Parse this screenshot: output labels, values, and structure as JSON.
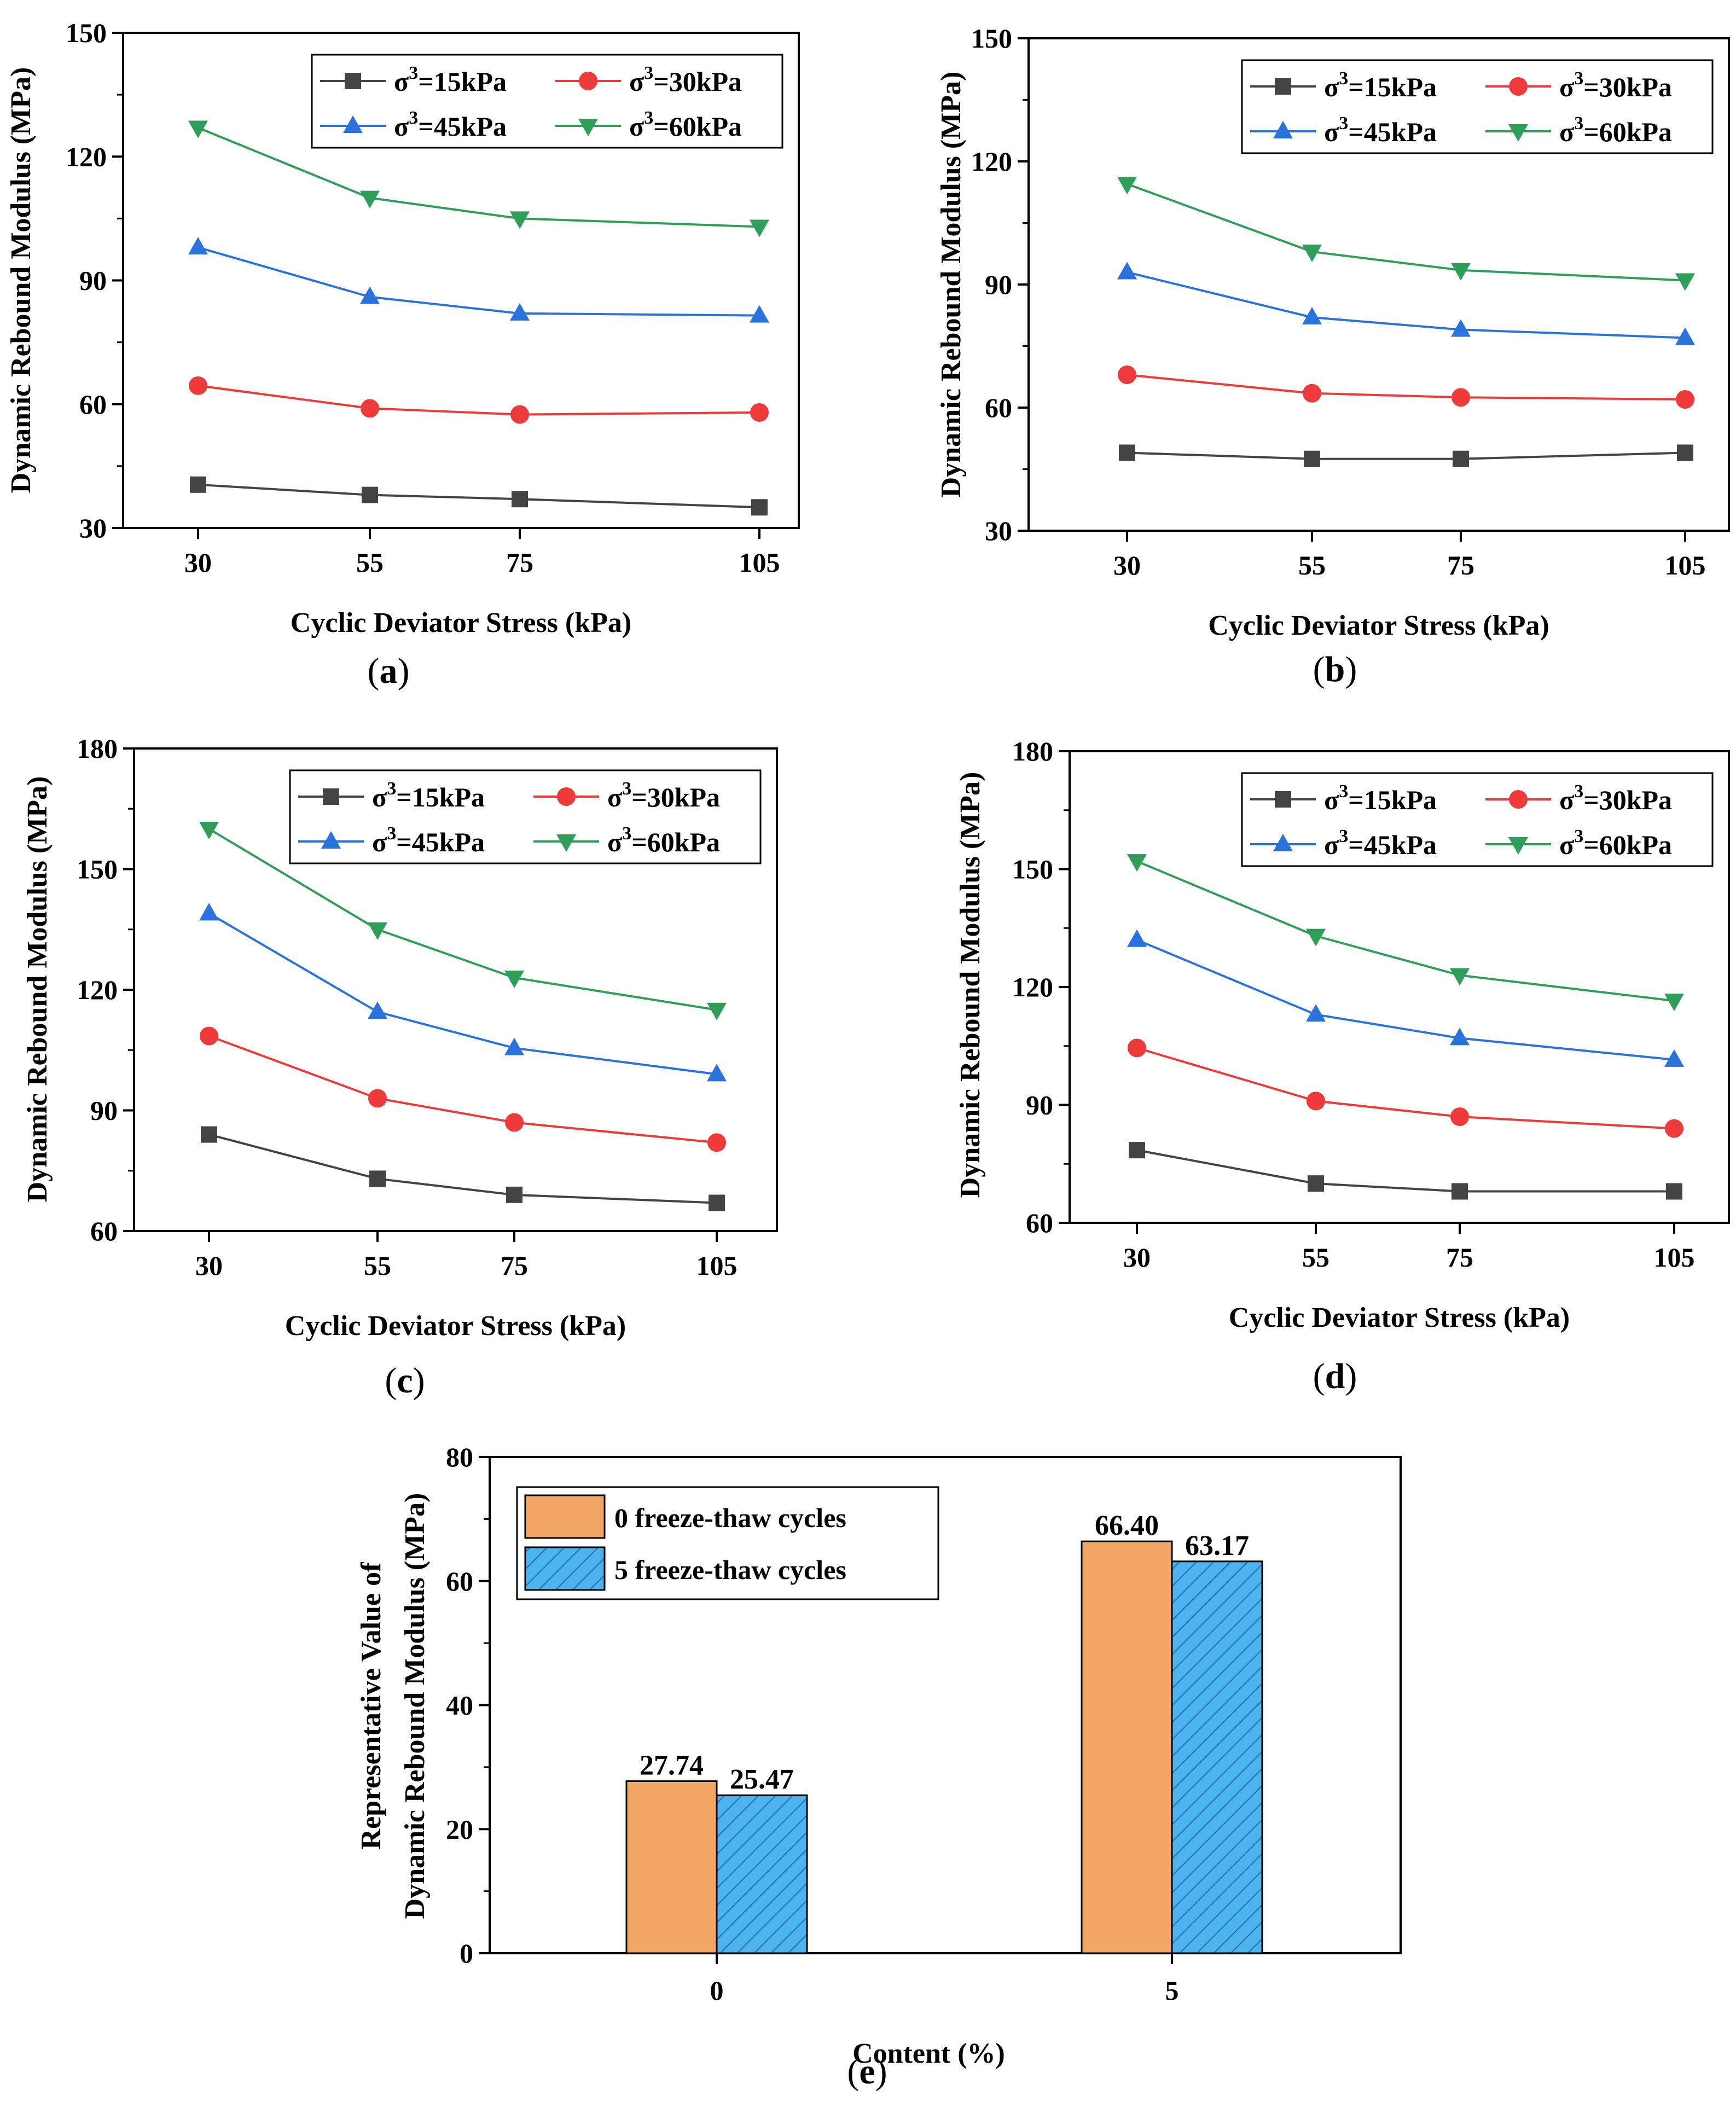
{
  "colors": {
    "s15": "#444444",
    "s30": "#ee3a3a",
    "s45": "#2a73dd",
    "s60": "#2e9e58",
    "bar0": "#f2a766",
    "bar5": "#4db3ec",
    "bar5_hatch": "#1f6fb3"
  },
  "chart_data": [
    {
      "id": "a",
      "type": "line",
      "caption_open": "(",
      "caption_letter": "a",
      "caption_close": ")",
      "xlabel": "Cyclic Deviator Stress (kPa)",
      "ylabel": "Dynamic Rebound Modulus (MPa)",
      "categories": [
        "30",
        "55",
        "75",
        "105"
      ],
      "ylim": [
        30,
        150
      ],
      "yticks": [
        30,
        60,
        90,
        120,
        150
      ],
      "legend_position": "top-right",
      "series": [
        {
          "name_prefix": "σ",
          "name_sup": "3",
          "name_suffix": "=15kPa",
          "color_key": "s15",
          "marker": "square",
          "values": [
            40.5,
            38,
            37,
            35
          ]
        },
        {
          "name_prefix": "σ",
          "name_sup": "3",
          "name_suffix": "=30kPa",
          "color_key": "s30",
          "marker": "circle",
          "values": [
            64.5,
            59,
            57.5,
            58
          ]
        },
        {
          "name_prefix": "σ",
          "name_sup": "3",
          "name_suffix": "=45kPa",
          "color_key": "s45",
          "marker": "triangle-up",
          "values": [
            98,
            86,
            82,
            81.5
          ]
        },
        {
          "name_prefix": "σ",
          "name_sup": "3",
          "name_suffix": "=60kPa",
          "color_key": "s60",
          "marker": "triangle-down",
          "values": [
            127,
            110,
            105,
            103
          ]
        }
      ]
    },
    {
      "id": "b",
      "type": "line",
      "caption_open": "(",
      "caption_letter": "b",
      "caption_close": ")",
      "xlabel": "Cyclic Deviator Stress (kPa)",
      "ylabel": "Dynamic Rebound Modulus (MPa)",
      "categories": [
        "30",
        "55",
        "75",
        "105"
      ],
      "ylim": [
        30,
        150
      ],
      "yticks": [
        30,
        60,
        90,
        120,
        150
      ],
      "legend_position": "top-right",
      "series": [
        {
          "name_prefix": "σ",
          "name_sup": "3",
          "name_suffix": "=15kPa",
          "color_key": "s15",
          "marker": "square",
          "values": [
            49,
            47.5,
            47.5,
            49
          ]
        },
        {
          "name_prefix": "σ",
          "name_sup": "3",
          "name_suffix": "=30kPa",
          "color_key": "s30",
          "marker": "circle",
          "values": [
            68,
            63.5,
            62.5,
            62
          ]
        },
        {
          "name_prefix": "σ",
          "name_sup": "3",
          "name_suffix": "=45kPa",
          "color_key": "s45",
          "marker": "triangle-up",
          "values": [
            93,
            82,
            79,
            77
          ]
        },
        {
          "name_prefix": "σ",
          "name_sup": "3",
          "name_suffix": "=60kPa",
          "color_key": "s60",
          "marker": "triangle-down",
          "values": [
            114.5,
            98,
            93.5,
            91
          ]
        }
      ]
    },
    {
      "id": "c",
      "type": "line",
      "caption_open": "(",
      "caption_letter": "c",
      "caption_close": ")",
      "xlabel": "Cyclic Deviator Stress (kPa)",
      "ylabel": "Dynamic Rebound Modulus (MPa)",
      "categories": [
        "30",
        "55",
        "75",
        "105"
      ],
      "ylim": [
        60,
        180
      ],
      "yticks": [
        60,
        90,
        120,
        150,
        180
      ],
      "legend_position": "top-right",
      "series": [
        {
          "name_prefix": "σ",
          "name_sup": "3",
          "name_suffix": "=15kPa",
          "color_key": "s15",
          "marker": "square",
          "values": [
            84,
            73,
            69,
            67
          ]
        },
        {
          "name_prefix": "σ",
          "name_sup": "3",
          "name_suffix": "=30kPa",
          "color_key": "s30",
          "marker": "circle",
          "values": [
            108.5,
            93,
            87,
            82
          ]
        },
        {
          "name_prefix": "σ",
          "name_sup": "3",
          "name_suffix": "=45kPa",
          "color_key": "s45",
          "marker": "triangle-up",
          "values": [
            139,
            114.5,
            105.5,
            99
          ]
        },
        {
          "name_prefix": "σ",
          "name_sup": "3",
          "name_suffix": "=60kPa",
          "color_key": "s60",
          "marker": "triangle-down",
          "values": [
            160,
            135,
            123,
            115
          ]
        }
      ]
    },
    {
      "id": "d",
      "type": "line",
      "caption_open": "(",
      "caption_letter": "d",
      "caption_close": ")",
      "xlabel": "Cyclic Deviator Stress (kPa)",
      "ylabel": "Dynamic Rebound Modulus (MPa)",
      "categories": [
        "30",
        "55",
        "75",
        "105"
      ],
      "ylim": [
        60,
        180
      ],
      "yticks": [
        60,
        90,
        120,
        150,
        180
      ],
      "legend_position": "top-right",
      "series": [
        {
          "name_prefix": "σ",
          "name_sup": "3",
          "name_suffix": "=15kPa",
          "color_key": "s15",
          "marker": "square",
          "values": [
            78.5,
            70,
            68,
            68
          ]
        },
        {
          "name_prefix": "σ",
          "name_sup": "3",
          "name_suffix": "=30kPa",
          "color_key": "s30",
          "marker": "circle",
          "values": [
            104.5,
            91,
            87,
            84
          ]
        },
        {
          "name_prefix": "σ",
          "name_sup": "3",
          "name_suffix": "=45kPa",
          "color_key": "s45",
          "marker": "triangle-up",
          "values": [
            132,
            113,
            107,
            101.5
          ]
        },
        {
          "name_prefix": "σ",
          "name_sup": "3",
          "name_suffix": "=60kPa",
          "color_key": "s60",
          "marker": "triangle-down",
          "values": [
            152,
            133,
            123,
            116.5
          ]
        }
      ]
    },
    {
      "id": "e",
      "type": "bar",
      "caption_open": "(",
      "caption_letter": "e",
      "caption_close": ")",
      "xlabel": "Content (%)",
      "ylabel_line1": "Representative Value of",
      "ylabel_line2": "Dynamic Rebound Modulus (MPa)",
      "categories": [
        "0",
        "5"
      ],
      "ylim": [
        0,
        80
      ],
      "yticks": [
        0,
        20,
        40,
        60,
        80
      ],
      "legend_position": "top-left",
      "series": [
        {
          "name": "0 freeze-thaw cycles",
          "color_key": "bar0",
          "hatched": false,
          "values": [
            27.74,
            66.4
          ],
          "labels": [
            "27.74",
            "66.40"
          ]
        },
        {
          "name": "5 freeze-thaw cycles",
          "color_key": "bar5",
          "hatched": true,
          "values": [
            25.47,
            63.17
          ],
          "labels": [
            "25.47",
            "63.17"
          ]
        }
      ]
    }
  ]
}
